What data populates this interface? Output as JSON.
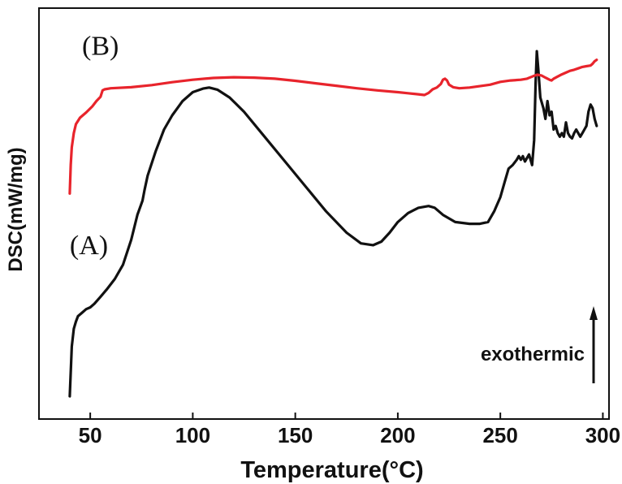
{
  "chart_data": {
    "type": "line",
    "title": "",
    "xlabel": "Temperature(°C)",
    "ylabel": "DSC(mW/mg)",
    "xlim": [
      25,
      303
    ],
    "ylim": [
      0,
      100
    ],
    "xticks": [
      50,
      100,
      150,
      200,
      250,
      300
    ],
    "grid": false,
    "annotations": [
      {
        "text": "exothermic",
        "arrow": "up"
      }
    ],
    "series": [
      {
        "name": "(A)",
        "color": "#111111",
        "label_at": {
          "x": 40,
          "y": 40
        },
        "x": [
          40,
          41,
          42,
          43,
          44,
          46,
          48,
          50,
          52,
          55,
          58,
          62,
          66,
          70,
          73,
          75.5,
          76.5,
          78,
          82,
          86,
          90,
          95,
          100,
          105,
          108,
          112,
          118,
          125,
          135,
          145,
          155,
          165,
          175,
          182,
          188,
          192,
          196,
          200,
          205,
          210,
          215,
          218,
          222,
          228,
          235,
          240,
          244,
          247,
          250,
          252,
          254,
          256,
          258,
          259,
          260,
          261,
          262,
          264,
          265.5,
          266.5,
          267.2,
          267.8,
          268.5,
          269.5,
          271,
          272,
          273,
          274,
          275,
          276,
          277,
          278,
          279,
          280,
          281,
          282,
          283,
          284,
          285,
          286,
          287,
          288,
          289,
          290,
          291,
          292,
          293,
          294,
          295,
          296,
          297
        ],
        "y": [
          0,
          14,
          19,
          21,
          22.5,
          23.5,
          24.5,
          25,
          26,
          28,
          30,
          33,
          37,
          44,
          51,
          55,
          58,
          62,
          69,
          75,
          79,
          83,
          85.5,
          86.5,
          86.8,
          86.2,
          84,
          80,
          73,
          66,
          59,
          52,
          46,
          43,
          42.5,
          43.5,
          46,
          49,
          51.5,
          53,
          53.5,
          53,
          51,
          49,
          48.5,
          48.5,
          49,
          52,
          56,
          60,
          64,
          65,
          66.5,
          67.5,
          66.5,
          67.5,
          66,
          68,
          65,
          72,
          88,
          97,
          92,
          84,
          81,
          78,
          83,
          79,
          80,
          75,
          76,
          74,
          73,
          74,
          73,
          77,
          74,
          73,
          72.5,
          74,
          75,
          74,
          73,
          74,
          75,
          76,
          80,
          82,
          81,
          78,
          76
        ]
      },
      {
        "name": "(B)",
        "color": "#e8242c",
        "label_at": {
          "x": 46,
          "y": 96
        },
        "x": [
          40,
          40.5,
          41,
          42,
          43,
          45,
          48,
          51,
          53,
          55,
          56,
          57,
          60,
          70,
          80,
          90,
          100,
          110,
          120,
          130,
          140,
          150,
          160,
          170,
          180,
          190,
          200,
          205,
          210,
          213,
          215,
          217,
          219,
          221,
          222,
          223,
          224,
          225,
          227,
          230,
          235,
          240,
          245,
          250,
          255,
          260,
          263,
          266,
          268,
          270,
          272,
          274,
          275,
          276,
          278,
          280,
          282,
          284,
          286,
          288,
          290,
          292,
          294,
          295,
          296,
          297
        ],
        "y": [
          57,
          65,
          70,
          74,
          76.5,
          78.3,
          79.8,
          81.5,
          83,
          84.2,
          86,
          86.3,
          86.6,
          86.9,
          87.5,
          88.3,
          89,
          89.5,
          89.7,
          89.6,
          89.3,
          88.7,
          88,
          87.3,
          86.6,
          86,
          85.5,
          85.2,
          84.9,
          84.7,
          85.3,
          86.3,
          86.8,
          87.8,
          89,
          89.3,
          88.8,
          87.6,
          86.9,
          86.6,
          86.8,
          87.2,
          87.6,
          88.4,
          88.8,
          89,
          89.3,
          90,
          90.4,
          90.2,
          89.6,
          89,
          88.8,
          89.3,
          89.9,
          90.5,
          91,
          91.5,
          91.8,
          92.2,
          92.6,
          92.8,
          93,
          93.5,
          94.2,
          94.6
        ]
      }
    ]
  }
}
